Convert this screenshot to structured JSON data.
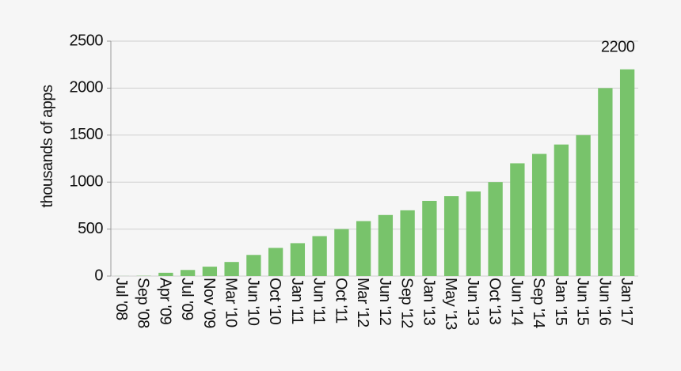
{
  "chart_data": {
    "type": "bar",
    "y_label": "thousands of apps",
    "categories": [
      "Jul '08",
      "Sep '08",
      "Apr '09",
      "Jul '09",
      "Nov '09",
      "Mar '10",
      "Jun '10",
      "Oct '10",
      "Jan '11",
      "Jun '11",
      "Oct '11",
      "Mar '12",
      "Jun '12",
      "Sep '12",
      "Jan '13",
      "May '13",
      "Jun '13",
      "Oct '13",
      "Jun '14",
      "Sep '14",
      "Jan '15",
      "Jun '15",
      "Jun '16",
      "Jan '17"
    ],
    "values": [
      0.8,
      3,
      35,
      65,
      100,
      150,
      225,
      300,
      350,
      425,
      500,
      585,
      650,
      700,
      800,
      850,
      900,
      1000,
      1200,
      1300,
      1400,
      1500,
      2000,
      2200
    ],
    "color": "#78c36b",
    "ylim": [
      0,
      2500
    ],
    "yticks": [
      0,
      500,
      1000,
      1500,
      2000,
      2500
    ],
    "grid": true
  }
}
